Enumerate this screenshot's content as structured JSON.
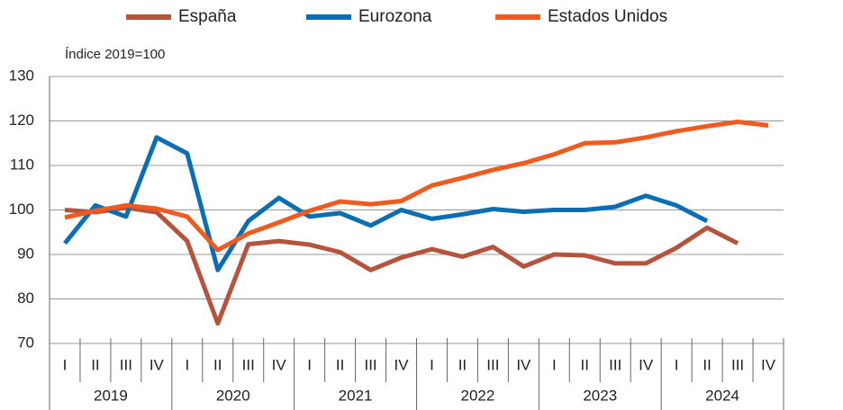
{
  "chart_data": {
    "type": "line",
    "subtitle": "Índice 2019=100",
    "categories": [
      "I",
      "II",
      "III",
      "IV",
      "I",
      "II",
      "III",
      "IV",
      "I",
      "II",
      "III",
      "IV",
      "I",
      "II",
      "III",
      "IV",
      "I",
      "II",
      "III",
      "IV",
      "I",
      "II",
      "III",
      "IV"
    ],
    "year_groups": [
      "2019",
      "2020",
      "2021",
      "2022",
      "2023",
      "2024"
    ],
    "series": [
      {
        "name": "España",
        "color": "#b5533c",
        "values": [
          100,
          99.5,
          100.5,
          99.5,
          93,
          74.5,
          92.3,
          93,
          92.2,
          90.5,
          86.5,
          89.3,
          91.2,
          89.5,
          91.7,
          87.3,
          90,
          89.8,
          88,
          88,
          91.5,
          96,
          92.5,
          null
        ]
      },
      {
        "name": "Eurozona",
        "color": "#0a6eb4",
        "values": [
          92.5,
          101,
          98.5,
          116.3,
          112.7,
          86.5,
          97.5,
          102.7,
          98.5,
          99.3,
          96.5,
          100,
          98,
          99,
          100.2,
          99.6,
          100,
          100,
          100.7,
          103.2,
          101,
          97.5,
          null,
          null
        ]
      },
      {
        "name": "Estados Unidos",
        "color": "#f05a1e",
        "values": [
          98.3,
          99.8,
          101,
          100.3,
          98.5,
          91,
          94.7,
          97.2,
          99.8,
          101.9,
          101.3,
          102,
          105.5,
          107.2,
          109,
          110.5,
          112.5,
          115,
          115.2,
          116.3,
          117.7,
          118.8,
          119.8,
          119
        ]
      }
    ],
    "ylim": [
      70,
      130
    ],
    "yticks": [
      70,
      80,
      90,
      100,
      110,
      120,
      130
    ],
    "grid": true
  }
}
